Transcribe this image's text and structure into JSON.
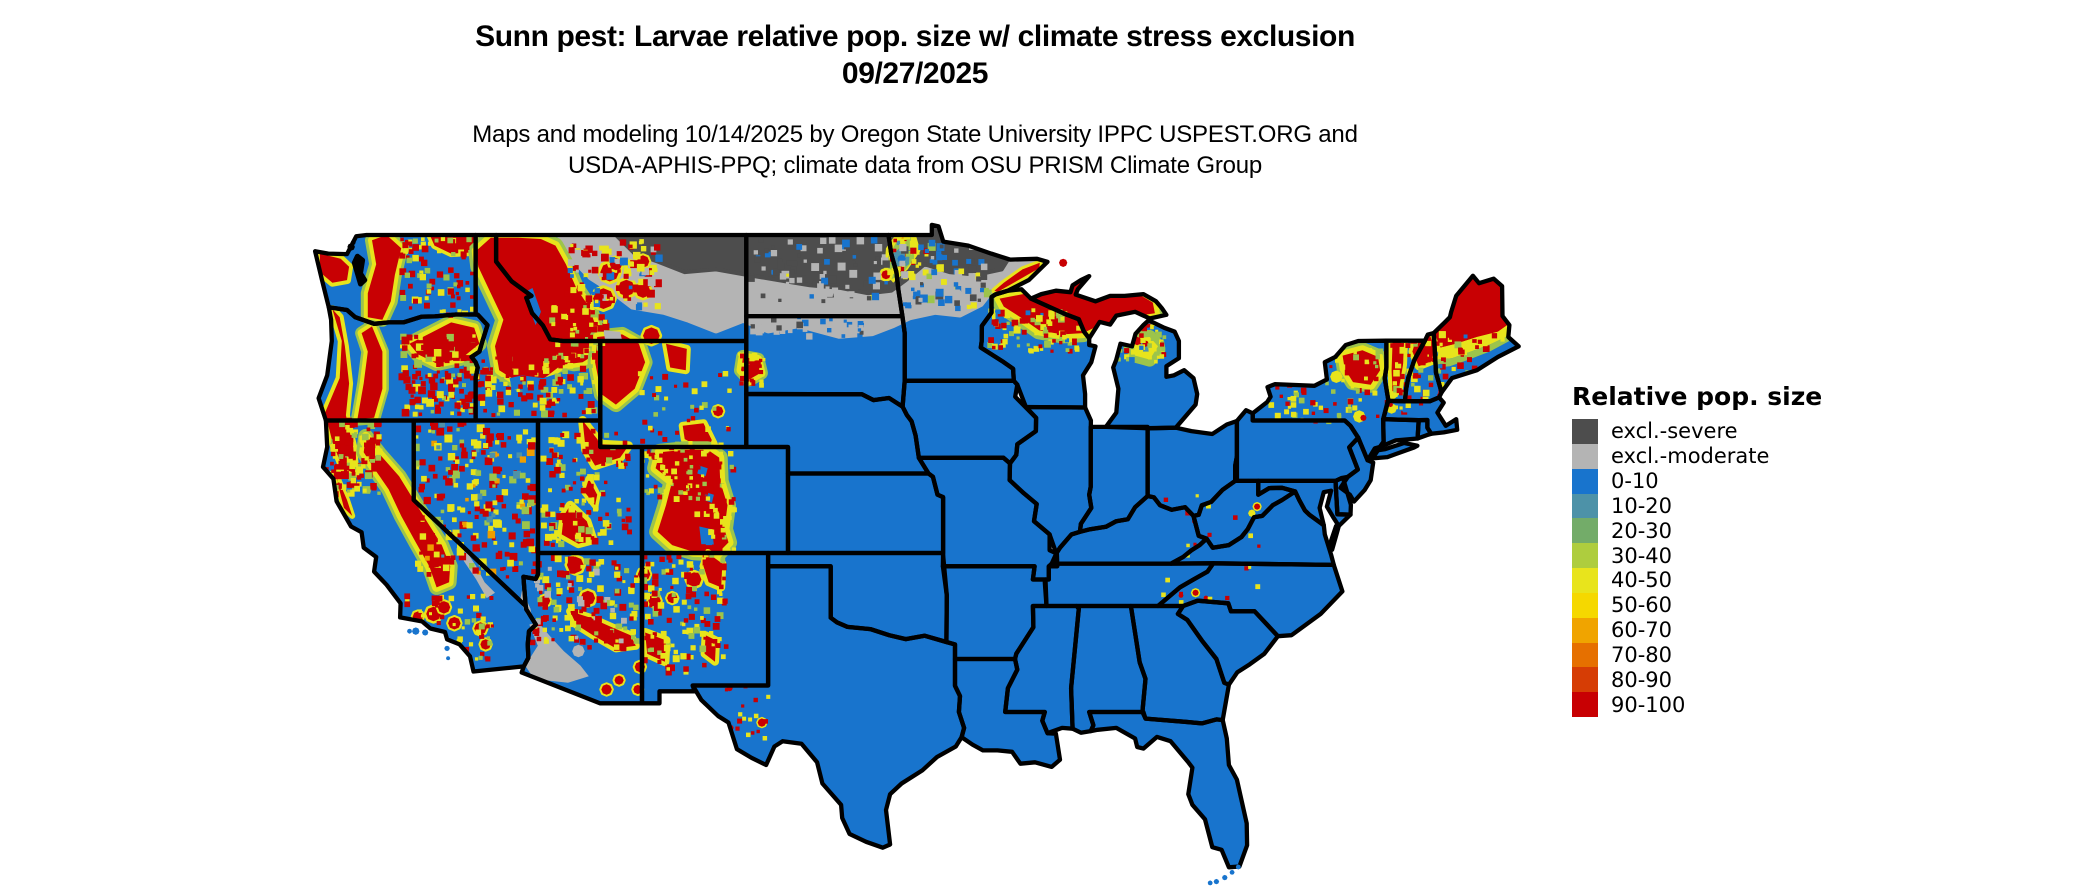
{
  "title": {
    "line1": "Sunn pest: Larvae relative pop. size w/ climate stress exclusion",
    "line2": "09/27/2025"
  },
  "subtitle": {
    "line1": "Maps and modeling 10/14/2025 by Oregon State University IPPC USPEST.ORG and",
    "line2": "USDA-APHIS-PPQ; climate data from OSU PRISM Climate Group"
  },
  "legend": {
    "title": "Relative pop. size",
    "items": [
      {
        "label": "excl.-severe",
        "color": "#4D4D4D"
      },
      {
        "label": "excl.-moderate",
        "color": "#B4B4B4"
      },
      {
        "label": "0-10",
        "color": "#1874CD"
      },
      {
        "label": "10-20",
        "color": "#4D92A8"
      },
      {
        "label": "20-30",
        "color": "#73AC69"
      },
      {
        "label": "30-40",
        "color": "#AECD3E"
      },
      {
        "label": "40-50",
        "color": "#E8E41C"
      },
      {
        "label": "50-60",
        "color": "#F5D800"
      },
      {
        "label": "60-70",
        "color": "#F0A400"
      },
      {
        "label": "70-80",
        "color": "#E67000"
      },
      {
        "label": "80-90",
        "color": "#D63D05"
      },
      {
        "label": "90-100",
        "color": "#C80003"
      }
    ]
  },
  "map": {
    "region": "Contiguous United States with state boundaries",
    "base_fill": "#1874CD",
    "border_color": "#000000",
    "background": "#FFFFFF",
    "overlay_colors": {
      "red": "#C80003",
      "orange": "#EE9E00",
      "yellow": "#E8E41C",
      "green": "#9CC44B",
      "teal": "#4D92A8",
      "excl_moderate": "#B4B4B4",
      "excl_severe": "#4D4D4D",
      "water": "#000000"
    }
  }
}
